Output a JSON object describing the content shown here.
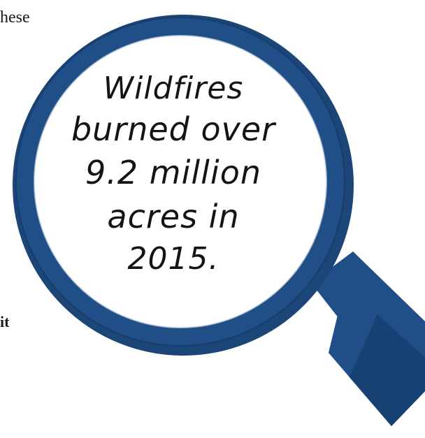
{
  "background_text": {
    "top_fragment": "hese",
    "bottom_fragment": "it"
  },
  "magnifier": {
    "lines": [
      "Wildfires",
      "burned over",
      "9.2 million",
      "acres in",
      "2015."
    ],
    "colors": {
      "ring": "#1f4f86",
      "handle": "#1f4f86",
      "lens": "#ffffff",
      "text": "#141414"
    }
  }
}
